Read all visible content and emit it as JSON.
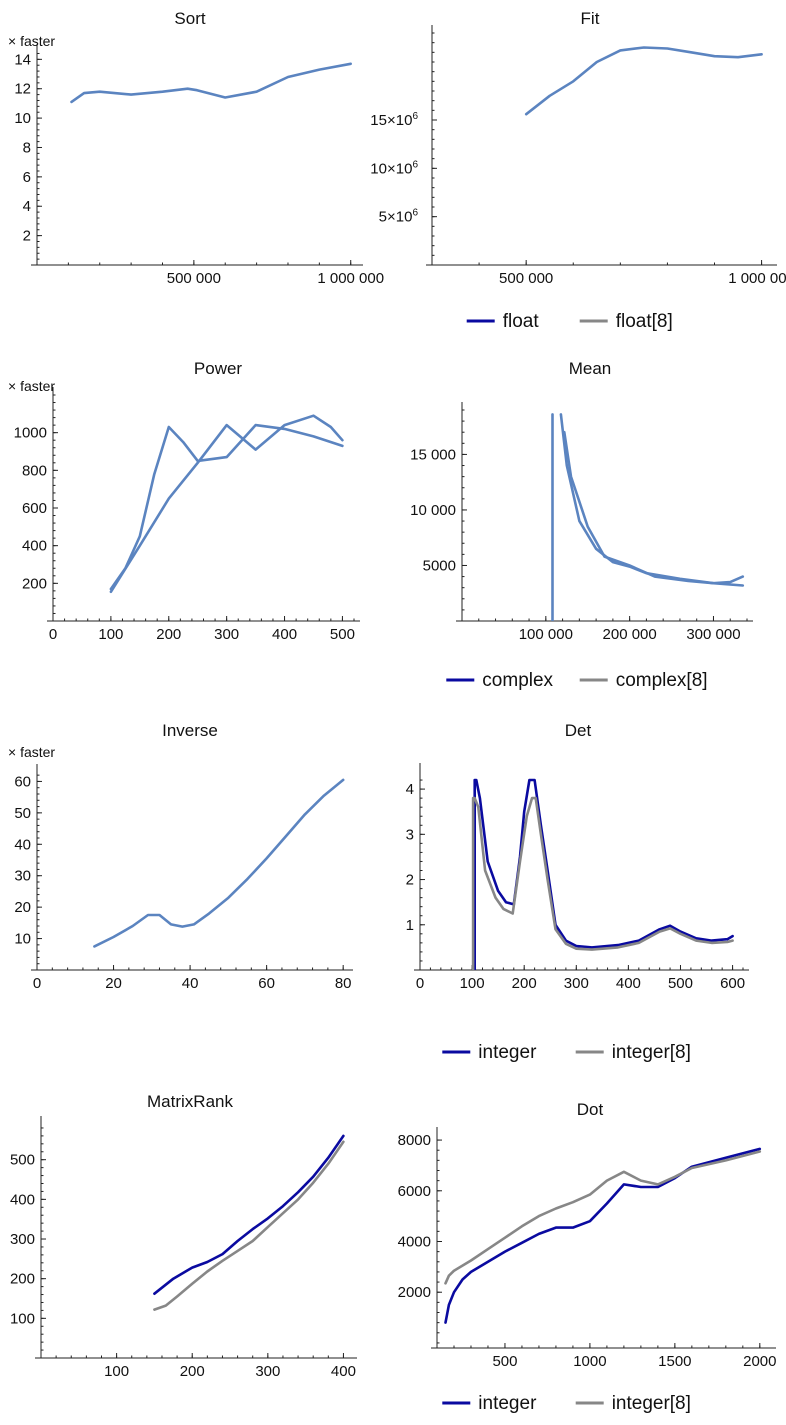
{
  "chart_data": [
    {
      "title": "Sort",
      "type": "line",
      "ylabel": "× faster",
      "xlim": [
        0,
        1020000
      ],
      "ylim": [
        0,
        14.5
      ],
      "xticks": [
        {
          "v": 500000,
          "label": "500 000"
        },
        {
          "v": 1000000,
          "label": "1 000 000"
        }
      ],
      "yticks": [
        {
          "v": 2,
          "label": "2"
        },
        {
          "v": 4,
          "label": "4"
        },
        {
          "v": 6,
          "label": "6"
        },
        {
          "v": 8,
          "label": "8"
        },
        {
          "v": 10,
          "label": "10"
        },
        {
          "v": 12,
          "label": "12"
        },
        {
          "v": 14,
          "label": "14"
        }
      ],
      "series": [
        {
          "color": "#5b84c0",
          "x": [
            110000,
            150000,
            200000,
            300000,
            400000,
            480000,
            510000,
            600000,
            700000,
            800000,
            900000,
            1000000
          ],
          "y": [
            11.1,
            11.7,
            11.8,
            11.6,
            11.8,
            12.0,
            11.9,
            11.4,
            11.8,
            12.8,
            13.3,
            13.7
          ]
        }
      ]
    },
    {
      "title": "Fit",
      "type": "line",
      "ylabel": "",
      "xlim": [
        300000,
        1020000
      ],
      "ylim": [
        0,
        24000000
      ],
      "xticks": [
        {
          "v": 500000,
          "label": "500 000"
        },
        {
          "v": 1000000,
          "label": "1 000 000"
        }
      ],
      "yticks": [
        {
          "v": 5000000,
          "label": "5×10",
          "sup": "6"
        },
        {
          "v": 10000000,
          "label": "10×10",
          "sup": "6"
        },
        {
          "v": 15000000,
          "label": "15×10",
          "sup": "6"
        }
      ],
      "series": [
        {
          "color": "#5b84c0",
          "x": [
            500000,
            550000,
            600000,
            650000,
            700000,
            750000,
            800000,
            850000,
            900000,
            950000,
            1000000
          ],
          "y": [
            15600000,
            17500000,
            19000000,
            21000000,
            22200000,
            22500000,
            22400000,
            22000000,
            21600000,
            21500000,
            21800000
          ]
        }
      ]
    },
    {
      "title": "Power",
      "type": "line",
      "ylabel": "× faster",
      "xlim": [
        0,
        520
      ],
      "ylim": [
        0,
        1200
      ],
      "xticks": [
        {
          "v": 0,
          "label": "0"
        },
        {
          "v": 100,
          "label": "100"
        },
        {
          "v": 200,
          "label": "200"
        },
        {
          "v": 300,
          "label": "300"
        },
        {
          "v": 400,
          "label": "400"
        },
        {
          "v": 500,
          "label": "500"
        }
      ],
      "yticks": [
        {
          "v": 200,
          "label": "200"
        },
        {
          "v": 400,
          "label": "400"
        },
        {
          "v": 600,
          "label": "600"
        },
        {
          "v": 800,
          "label": "800"
        },
        {
          "v": 1000,
          "label": "1000"
        }
      ],
      "series": [
        {
          "color": "#5b84c0",
          "x": [
            100,
            125,
            150,
            175,
            200,
            225,
            250,
            300,
            350,
            400,
            450,
            500
          ],
          "y": [
            170,
            280,
            450,
            780,
            1030,
            950,
            850,
            870,
            1040,
            1020,
            980,
            930
          ]
        },
        {
          "color": "#5b84c0",
          "x": [
            100,
            150,
            200,
            250,
            300,
            350,
            400,
            450,
            480,
            500
          ],
          "y": [
            155,
            400,
            650,
            840,
            1040,
            910,
            1040,
            1090,
            1030,
            960
          ]
        }
      ]
    },
    {
      "title": "Mean",
      "type": "line",
      "ylabel": "",
      "xlim": [
        0,
        340000
      ],
      "ylim": [
        0,
        19000
      ],
      "xticks": [
        {
          "v": 100000,
          "label": "100 000"
        },
        {
          "v": 200000,
          "label": "200 000"
        },
        {
          "v": 300000,
          "label": "300 000"
        }
      ],
      "yticks": [
        {
          "v": 5000,
          "label": "5000"
        },
        {
          "v": 10000,
          "label": "10 000"
        },
        {
          "v": 15000,
          "label": "15 000"
        }
      ],
      "series": [
        {
          "color": "#5b84c0",
          "x": [
            108000,
            108000
          ],
          "y": [
            0,
            18600
          ]
        },
        {
          "color": "#5b84c0",
          "x": [
            118000,
            125000,
            140000,
            160000,
            180000,
            200000,
            220000,
            260000,
            300000,
            335000
          ],
          "y": [
            18600,
            14000,
            9000,
            6500,
            5300,
            4900,
            4300,
            3800,
            3400,
            3200
          ]
        },
        {
          "color": "#5b84c0",
          "x": [
            122000,
            130000,
            150000,
            170000,
            200000,
            230000,
            270000,
            300000,
            320000,
            335000
          ],
          "y": [
            17000,
            13000,
            8500,
            5800,
            5000,
            4000,
            3600,
            3400,
            3500,
            4000
          ]
        }
      ]
    },
    {
      "title": "Inverse",
      "type": "line",
      "ylabel": "× faster",
      "xlim": [
        0,
        81
      ],
      "ylim": [
        0,
        63
      ],
      "xticks": [
        {
          "v": 0,
          "label": "0"
        },
        {
          "v": 20,
          "label": "20"
        },
        {
          "v": 40,
          "label": "40"
        },
        {
          "v": 60,
          "label": "60"
        },
        {
          "v": 80,
          "label": "80"
        }
      ],
      "yticks": [
        {
          "v": 10,
          "label": "10"
        },
        {
          "v": 20,
          "label": "20"
        },
        {
          "v": 30,
          "label": "30"
        },
        {
          "v": 40,
          "label": "40"
        },
        {
          "v": 50,
          "label": "50"
        },
        {
          "v": 60,
          "label": "60"
        }
      ],
      "series": [
        {
          "color": "#5b84c0",
          "x": [
            15,
            20,
            25,
            29,
            32,
            35,
            38,
            41,
            45,
            50,
            55,
            60,
            65,
            70,
            75,
            80
          ],
          "y": [
            7.5,
            10.5,
            14,
            17.5,
            17.5,
            14.5,
            13.8,
            14.5,
            18,
            23,
            29,
            35.5,
            42.5,
            49.5,
            55.5,
            60.5
          ]
        }
      ]
    },
    {
      "title": "Det",
      "type": "line",
      "ylabel": "",
      "xlim": [
        0,
        620
      ],
      "ylim": [
        0,
        4.4
      ],
      "xticks": [
        {
          "v": 0,
          "label": "0"
        },
        {
          "v": 100,
          "label": "100"
        },
        {
          "v": 200,
          "label": "200"
        },
        {
          "v": 300,
          "label": "300"
        },
        {
          "v": 400,
          "label": "400"
        },
        {
          "v": 500,
          "label": "500"
        },
        {
          "v": 600,
          "label": "600"
        }
      ],
      "yticks": [
        {
          "v": 1,
          "label": "1"
        },
        {
          "v": 2,
          "label": "2"
        },
        {
          "v": 3,
          "label": "3"
        },
        {
          "v": 4,
          "label": "4"
        }
      ],
      "series": [
        {
          "name": "integer",
          "color": "#0a0aa0",
          "x": [
            105,
            105,
            108,
            115,
            130,
            150,
            165,
            180,
            192,
            200,
            210,
            220,
            232,
            245,
            260,
            280,
            300,
            330,
            380,
            420,
            460,
            480,
            500,
            530,
            560,
            590,
            600
          ],
          "y": [
            0,
            4.2,
            4.2,
            3.8,
            2.4,
            1.75,
            1.5,
            1.45,
            2.5,
            3.5,
            4.2,
            4.2,
            3.2,
            2.2,
            1.0,
            0.65,
            0.53,
            0.5,
            0.55,
            0.65,
            0.9,
            0.98,
            0.85,
            0.7,
            0.65,
            0.68,
            0.75
          ]
        },
        {
          "name": "integer[8]",
          "color": "#878787",
          "x": [
            102,
            102,
            105,
            112,
            125,
            145,
            160,
            178,
            192,
            205,
            215,
            222,
            232,
            245,
            260,
            280,
            300,
            330,
            380,
            420,
            460,
            480,
            500,
            530,
            560,
            590,
            600
          ],
          "y": [
            0,
            3.8,
            3.8,
            3.6,
            2.2,
            1.6,
            1.35,
            1.25,
            2.4,
            3.4,
            3.8,
            3.8,
            3.0,
            2.0,
            0.9,
            0.58,
            0.47,
            0.45,
            0.5,
            0.6,
            0.85,
            0.92,
            0.8,
            0.65,
            0.6,
            0.62,
            0.65
          ]
        }
      ]
    },
    {
      "title": "MatrixRank",
      "type": "line",
      "ylabel": "",
      "xlim": [
        0,
        410
      ],
      "ylim": [
        0,
        590
      ],
      "xticks": [
        {
          "v": 100,
          "label": "100"
        },
        {
          "v": 200,
          "label": "200"
        },
        {
          "v": 300,
          "label": "300"
        },
        {
          "v": 400,
          "label": "400"
        }
      ],
      "yticks": [
        {
          "v": 100,
          "label": "100"
        },
        {
          "v": 200,
          "label": "200"
        },
        {
          "v": 300,
          "label": "300"
        },
        {
          "v": 400,
          "label": "400"
        },
        {
          "v": 500,
          "label": "500"
        }
      ],
      "series": [
        {
          "name": "integer",
          "color": "#0a0aa0",
          "x": [
            150,
            175,
            200,
            220,
            240,
            260,
            280,
            300,
            320,
            340,
            360,
            380,
            400
          ],
          "y": [
            162,
            200,
            228,
            242,
            262,
            295,
            325,
            352,
            383,
            418,
            457,
            505,
            560
          ]
        },
        {
          "name": "integer[8]",
          "color": "#878787",
          "x": [
            150,
            165,
            180,
            200,
            220,
            240,
            260,
            280,
            300,
            320,
            340,
            360,
            380,
            400
          ],
          "y": [
            122,
            132,
            155,
            187,
            218,
            245,
            270,
            295,
            330,
            365,
            400,
            442,
            490,
            545
          ]
        }
      ]
    },
    {
      "title": "Dot",
      "type": "line",
      "ylabel": "",
      "xlim": [
        100,
        2060
      ],
      "ylim": [
        -200,
        8200
      ],
      "xticks": [
        {
          "v": 500,
          "label": "500"
        },
        {
          "v": 1000,
          "label": "1000"
        },
        {
          "v": 1500,
          "label": "1500"
        },
        {
          "v": 2000,
          "label": "2000"
        }
      ],
      "yticks": [
        {
          "v": 2000,
          "label": "2000"
        },
        {
          "v": 4000,
          "label": "4000"
        },
        {
          "v": 6000,
          "label": "6000"
        },
        {
          "v": 8000,
          "label": "8000"
        }
      ],
      "series": [
        {
          "name": "integer",
          "color": "#0a0aa0",
          "x": [
            150,
            170,
            200,
            250,
            300,
            400,
            500,
            600,
            700,
            800,
            900,
            1000,
            1100,
            1200,
            1300,
            1400,
            1500,
            1600,
            1800,
            2000
          ],
          "y": [
            800,
            1500,
            2000,
            2500,
            2800,
            3200,
            3600,
            3950,
            4300,
            4550,
            4550,
            4800,
            5500,
            6250,
            6150,
            6150,
            6500,
            6950,
            7300,
            7650
          ]
        },
        {
          "name": "integer[8]",
          "color": "#878787",
          "x": [
            150,
            170,
            200,
            300,
            400,
            500,
            600,
            700,
            800,
            900,
            1000,
            1100,
            1200,
            1300,
            1400,
            1500,
            1600,
            1800,
            2000
          ],
          "y": [
            2350,
            2650,
            2850,
            3250,
            3700,
            4150,
            4600,
            5000,
            5300,
            5550,
            5850,
            6400,
            6750,
            6400,
            6250,
            6550,
            6900,
            7200,
            7550
          ]
        }
      ]
    }
  ],
  "legends": [
    {
      "items": [
        {
          "label": "float",
          "color": "#0a0aa0"
        },
        {
          "label": "float[8]",
          "color": "#878787"
        }
      ]
    },
    {
      "items": [
        {
          "label": "complex",
          "color": "#0a0aa0"
        },
        {
          "label": "complex[8]",
          "color": "#878787"
        }
      ]
    },
    {
      "items": [
        {
          "label": "integer",
          "color": "#0a0aa0"
        },
        {
          "label": "integer[8]",
          "color": "#878787"
        }
      ]
    },
    {
      "items": [
        {
          "label": "integer",
          "color": "#0a0aa0"
        },
        {
          "label": "integer[8]",
          "color": "#878787"
        }
      ]
    }
  ]
}
